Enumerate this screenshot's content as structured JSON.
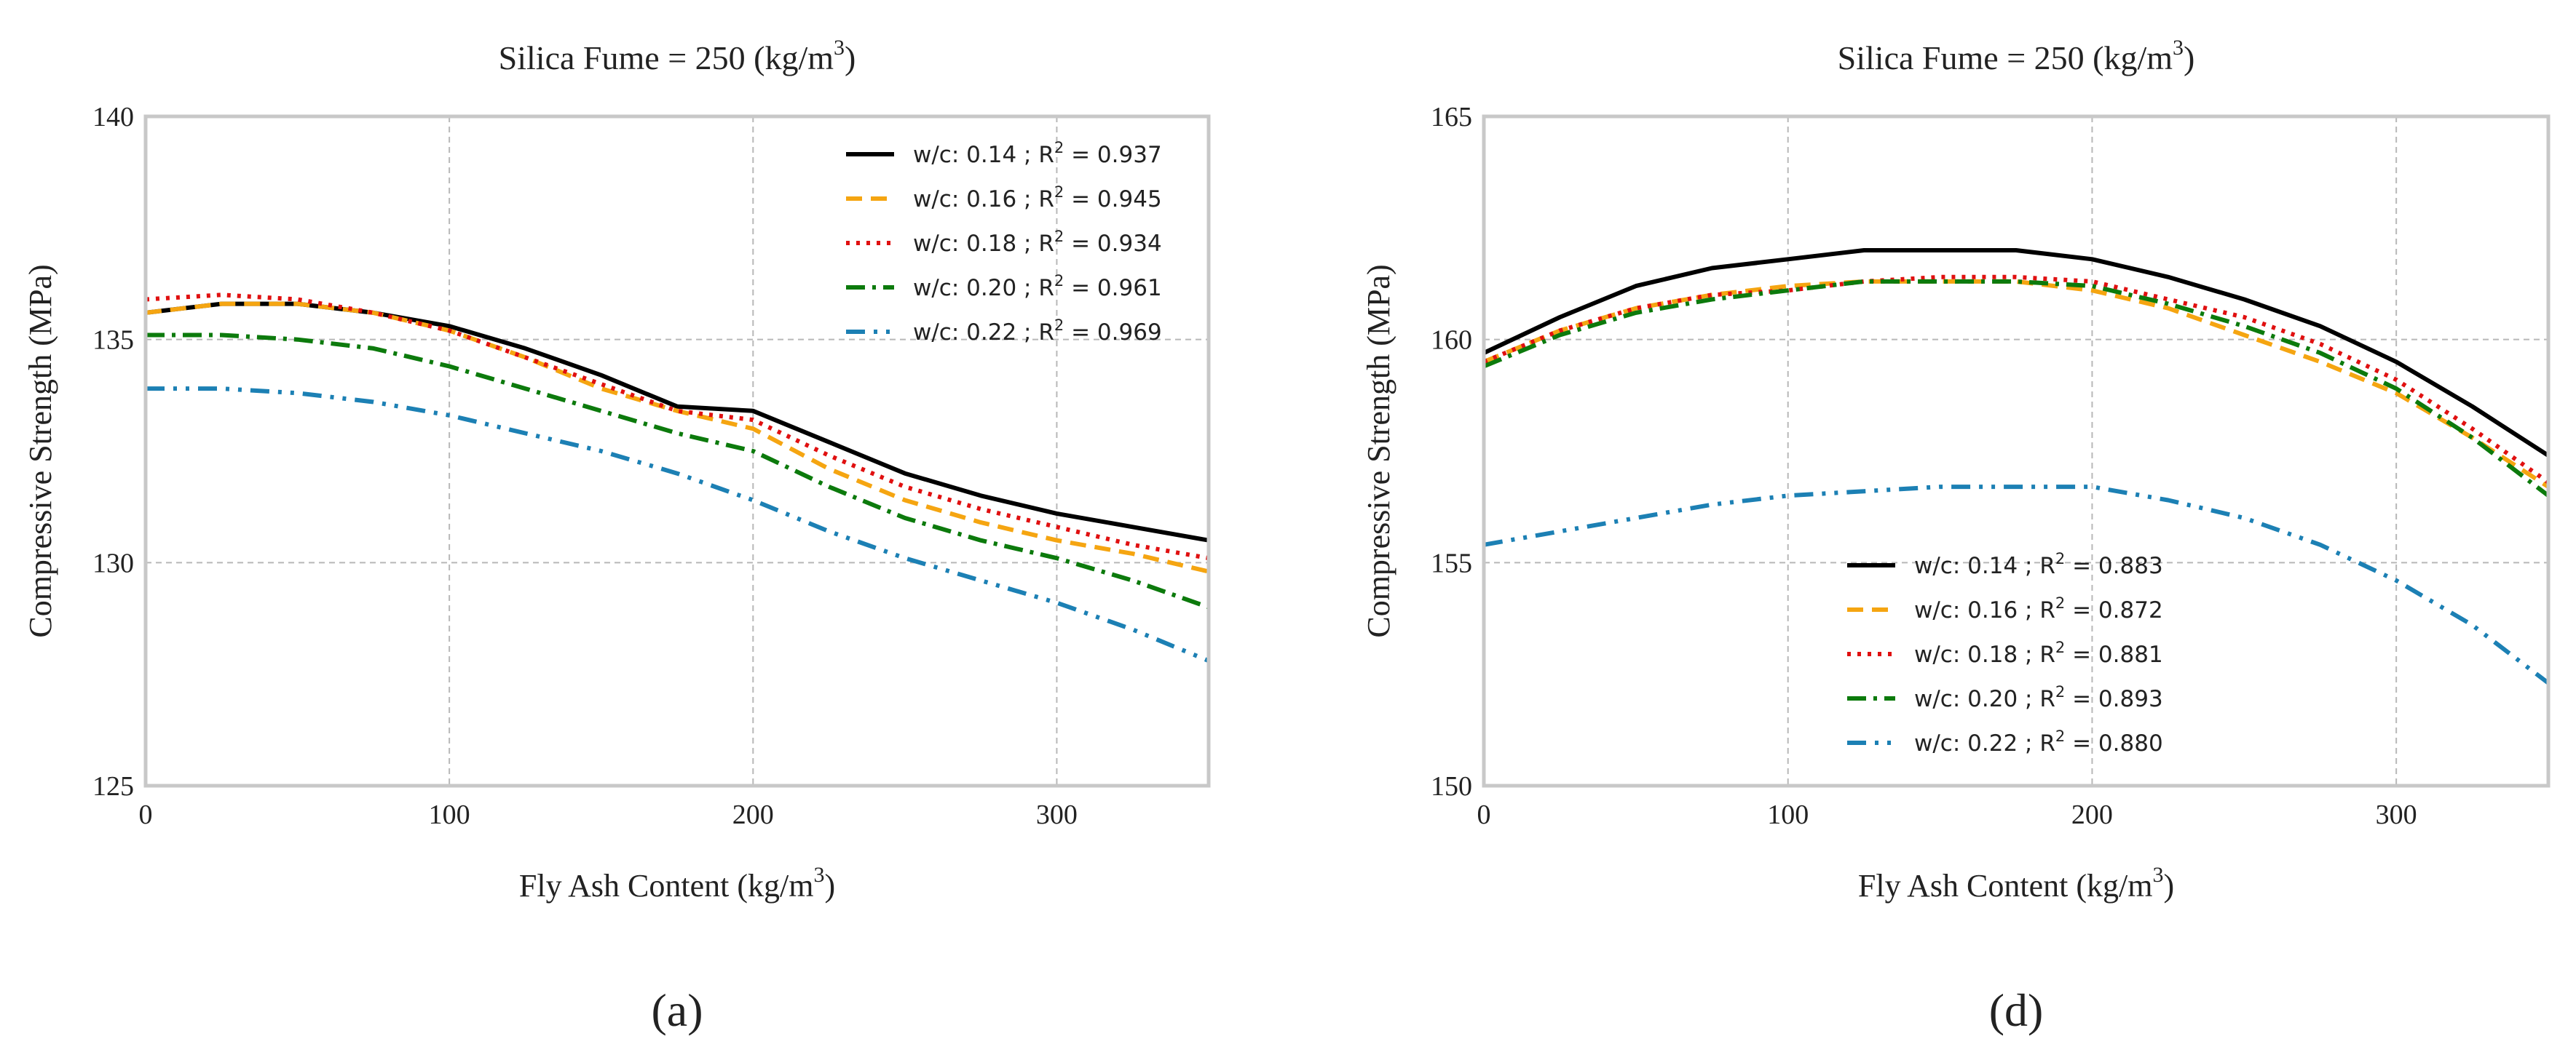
{
  "chart_data": [
    {
      "type": "line",
      "panel_label": "(a)",
      "title": "Silica Fume = 250 (kg/m",
      "title_sup": "3",
      "title_tail": ")",
      "xlabel": "Fly Ash Content (kg/m",
      "xlabel_sup": "3",
      "xlabel_tail": ")",
      "ylabel": "Compressive Strength (MPa)",
      "xlim": [
        0,
        350
      ],
      "ylim": [
        125,
        140
      ],
      "xticks": [
        0,
        100,
        200,
        300
      ],
      "yticks": [
        125,
        130,
        135,
        140
      ],
      "grid": true,
      "legend_position": "top-right",
      "series": [
        {
          "name": "w/c: 0.14 ; R",
          "r2": "= 0.937",
          "color": "#000000",
          "dash": "solid",
          "x": [
            0,
            25,
            50,
            75,
            100,
            125,
            150,
            175,
            200,
            225,
            250,
            275,
            300,
            325,
            350
          ],
          "y": [
            135.6,
            135.8,
            135.8,
            135.6,
            135.3,
            134.8,
            134.2,
            133.5,
            133.4,
            132.7,
            132.0,
            131.5,
            131.1,
            130.8,
            130.5
          ]
        },
        {
          "name": "w/c: 0.16 ; R",
          "r2": "= 0.945",
          "color": "#f5a511",
          "dash": "dashed",
          "x": [
            0,
            25,
            50,
            75,
            100,
            125,
            150,
            175,
            200,
            225,
            250,
            275,
            300,
            325,
            350
          ],
          "y": [
            135.6,
            135.8,
            135.8,
            135.6,
            135.2,
            134.6,
            133.9,
            133.4,
            133.0,
            132.1,
            131.4,
            130.9,
            130.5,
            130.2,
            129.8
          ]
        },
        {
          "name": "w/c: 0.18 ; R",
          "r2": "= 0.934",
          "color": "#e01010",
          "dash": "dotted",
          "x": [
            0,
            25,
            50,
            75,
            100,
            125,
            150,
            175,
            200,
            225,
            250,
            275,
            300,
            325,
            350
          ],
          "y": [
            135.9,
            136.0,
            135.9,
            135.6,
            135.2,
            134.6,
            134.0,
            133.4,
            133.2,
            132.4,
            131.7,
            131.2,
            130.8,
            130.4,
            130.1
          ]
        },
        {
          "name": "w/c: 0.20 ; R",
          "r2": "= 0.961",
          "color": "#0c7a0c",
          "dash": "dashdot",
          "x": [
            0,
            25,
            50,
            75,
            100,
            125,
            150,
            175,
            200,
            225,
            250,
            275,
            300,
            325,
            350
          ],
          "y": [
            135.1,
            135.1,
            135.0,
            134.8,
            134.4,
            133.9,
            133.4,
            132.9,
            132.5,
            131.7,
            131.0,
            130.5,
            130.1,
            129.6,
            129.0
          ]
        },
        {
          "name": "w/c: 0.22 ; R",
          "r2": "= 0.969",
          "color": "#1c80b4",
          "dash": "dashdotdot",
          "x": [
            0,
            25,
            50,
            75,
            100,
            125,
            150,
            175,
            200,
            225,
            250,
            275,
            300,
            325,
            350
          ],
          "y": [
            133.9,
            133.9,
            133.8,
            133.6,
            133.3,
            132.9,
            132.5,
            132.0,
            131.4,
            130.7,
            130.1,
            129.6,
            129.1,
            128.5,
            127.8
          ]
        }
      ]
    },
    {
      "type": "line",
      "panel_label": "(d)",
      "title": "Silica Fume = 250 (kg/m",
      "title_sup": "3",
      "title_tail": ")",
      "xlabel": "Fly Ash Content (kg/m",
      "xlabel_sup": "3",
      "xlabel_tail": ")",
      "ylabel": "Compressive Strength (MPa)",
      "xlim": [
        0,
        350
      ],
      "ylim": [
        150,
        165
      ],
      "xticks": [
        0,
        100,
        200,
        300
      ],
      "yticks": [
        150,
        155,
        160,
        165
      ],
      "grid": true,
      "legend_position": "bottom-center",
      "series": [
        {
          "name": "w/c: 0.14 ; R",
          "r2": "= 0.883",
          "color": "#000000",
          "dash": "solid",
          "x": [
            0,
            25,
            50,
            75,
            100,
            125,
            150,
            175,
            200,
            225,
            250,
            275,
            300,
            325,
            350
          ],
          "y": [
            159.7,
            160.5,
            161.2,
            161.6,
            161.8,
            162.0,
            162.0,
            162.0,
            161.8,
            161.4,
            160.9,
            160.3,
            159.5,
            158.5,
            157.4
          ]
        },
        {
          "name": "w/c: 0.16 ; R",
          "r2": "= 0.872",
          "color": "#f5a511",
          "dash": "dashed",
          "x": [
            0,
            25,
            50,
            75,
            100,
            125,
            150,
            175,
            200,
            225,
            250,
            275,
            300,
            325,
            350
          ],
          "y": [
            159.5,
            160.2,
            160.7,
            161.0,
            161.2,
            161.3,
            161.3,
            161.3,
            161.1,
            160.7,
            160.1,
            159.5,
            158.8,
            157.8,
            156.7
          ]
        },
        {
          "name": "w/c: 0.18 ; R",
          "r2": "= 0.881",
          "color": "#e01010",
          "dash": "dotted",
          "x": [
            0,
            25,
            50,
            75,
            100,
            125,
            150,
            175,
            200,
            225,
            250,
            275,
            300,
            325,
            350
          ],
          "y": [
            159.5,
            160.2,
            160.7,
            161.0,
            161.1,
            161.3,
            161.4,
            161.4,
            161.3,
            160.9,
            160.5,
            159.9,
            159.1,
            158.0,
            156.8
          ]
        },
        {
          "name": "w/c: 0.20 ; R",
          "r2": "= 0.893",
          "color": "#0c7a0c",
          "dash": "dashdot",
          "x": [
            0,
            25,
            50,
            75,
            100,
            125,
            150,
            175,
            200,
            225,
            250,
            275,
            300,
            325,
            350
          ],
          "y": [
            159.4,
            160.1,
            160.6,
            160.9,
            161.1,
            161.3,
            161.3,
            161.3,
            161.2,
            160.8,
            160.3,
            159.7,
            158.9,
            157.8,
            156.5
          ]
        },
        {
          "name": "w/c: 0.22 ; R",
          "r2": "= 0.880",
          "color": "#1c80b4",
          "dash": "dashdotdot",
          "x": [
            0,
            25,
            50,
            75,
            100,
            125,
            150,
            175,
            200,
            225,
            250,
            275,
            300,
            325,
            350
          ],
          "y": [
            155.4,
            155.7,
            156.0,
            156.3,
            156.5,
            156.6,
            156.7,
            156.7,
            156.7,
            156.4,
            156.0,
            155.4,
            154.6,
            153.6,
            152.3
          ]
        }
      ]
    }
  ]
}
